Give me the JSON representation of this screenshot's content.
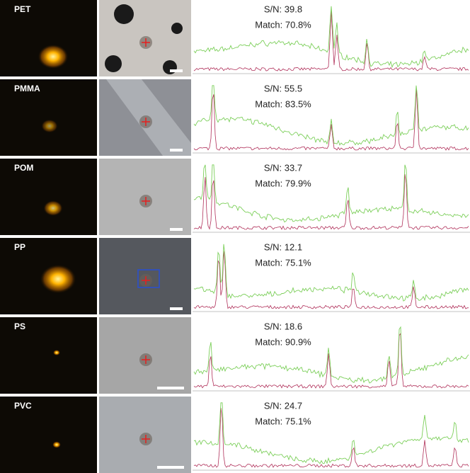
{
  "rows": [
    {
      "label": "PET",
      "sn": "S/N: 39.8",
      "match": "Match: 70.8%"
    },
    {
      "label": "PMMA",
      "sn": "S/N: 55.5",
      "match": "Match: 83.5%"
    },
    {
      "label": "POM",
      "sn": "S/N: 33.7",
      "match": "Match: 79.9%"
    },
    {
      "label": "PP",
      "sn": "S/N: 12.1",
      "match": "Match: 75.1%"
    },
    {
      "label": "PS",
      "sn": "S/N: 18.6",
      "match": "Match: 90.9%"
    },
    {
      "label": "PVC",
      "sn": "S/N: 24.7",
      "match": "Match: 75.1%"
    }
  ]
}
